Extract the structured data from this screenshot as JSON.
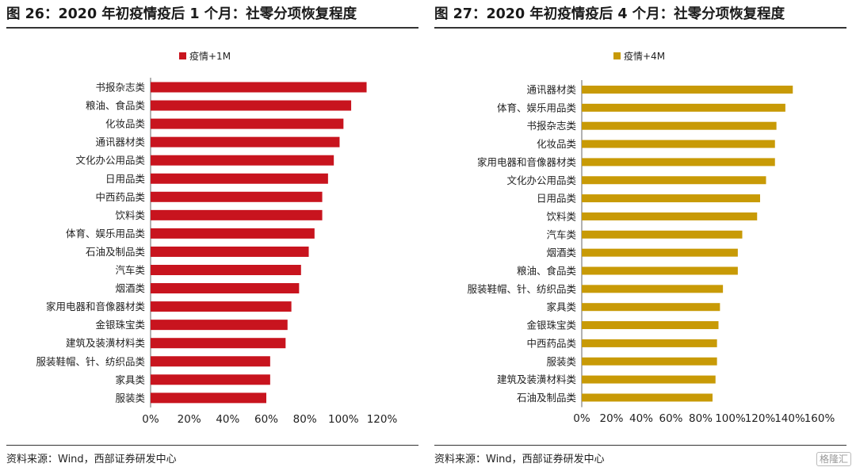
{
  "panels": [
    {
      "title": "图 26：2020 年初疫情疫后 1 个月：社零分项恢复程度",
      "source": "资料来源：Wind，西部证券研发中心"
    },
    {
      "title": "图 27：2020 年初疫情疫后 4 个月：社零分项恢复程度",
      "source": "资料来源：Wind，西部证券研发中心"
    }
  ],
  "watermark": "格隆汇",
  "chart_data": [
    {
      "type": "bar",
      "orientation": "horizontal",
      "categories": [
        "书报杂志类",
        "粮油、食品类",
        "化妆品类",
        "通讯器材类",
        "文化办公用品类",
        "日用品类",
        "中西药品类",
        "饮料类",
        "体育、娱乐用品类",
        "石油及制品类",
        "汽车类",
        "烟酒类",
        "家用电器和音像器材类",
        "金银珠宝类",
        "建筑及装潢材料类",
        "服装鞋帽、针、纺织品类",
        "家具类",
        "服装类"
      ],
      "series": [
        {
          "name": "疫情+1M",
          "values": [
            1.12,
            1.04,
            1.0,
            0.98,
            0.95,
            0.92,
            0.89,
            0.89,
            0.85,
            0.82,
            0.78,
            0.77,
            0.73,
            0.71,
            0.7,
            0.62,
            0.62,
            0.6
          ]
        }
      ],
      "xlim": [
        0,
        1.2
      ],
      "xticks": [
        0,
        0.2,
        0.4,
        0.6,
        0.8,
        1.0,
        1.2
      ],
      "xtick_labels": [
        "0%",
        "20%",
        "40%",
        "60%",
        "80%",
        "100%",
        "120%"
      ],
      "color": "#c8141e",
      "legend_position": "top"
    },
    {
      "type": "bar",
      "orientation": "horizontal",
      "categories": [
        "通讯器材类",
        "体育、娱乐用品类",
        "书报杂志类",
        "化妆品类",
        "家用电器和音像器材类",
        "文化办公用品类",
        "日用品类",
        "饮料类",
        "汽车类",
        "烟酒类",
        "粮油、食品类",
        "服装鞋帽、针、纺织品类",
        "家具类",
        "金银珠宝类",
        "中西药品类",
        "服装类",
        "建筑及装潢材料类",
        "石油及制品类"
      ],
      "series": [
        {
          "name": "疫情+4M",
          "values": [
            1.42,
            1.37,
            1.31,
            1.3,
            1.3,
            1.24,
            1.2,
            1.18,
            1.08,
            1.05,
            1.05,
            0.95,
            0.93,
            0.92,
            0.91,
            0.91,
            0.9,
            0.88
          ]
        }
      ],
      "xlim": [
        0,
        1.6
      ],
      "xticks": [
        0,
        0.2,
        0.4,
        0.6,
        0.8,
        1.0,
        1.2,
        1.4,
        1.6
      ],
      "xtick_labels": [
        "0%",
        "20%",
        "40%",
        "60%",
        "80%",
        "100%",
        "120%",
        "140%",
        "160%"
      ],
      "color": "#c89a06",
      "legend_position": "top"
    }
  ]
}
